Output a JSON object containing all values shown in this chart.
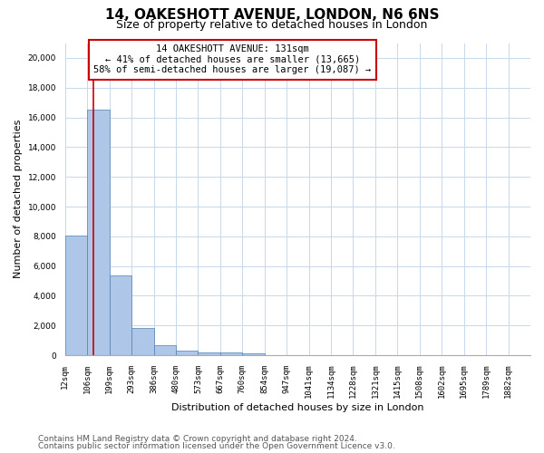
{
  "title_line1": "14, OAKESHOTT AVENUE, LONDON, N6 6NS",
  "title_line2": "Size of property relative to detached houses in London",
  "xlabel": "Distribution of detached houses by size in London",
  "ylabel": "Number of detached properties",
  "bar_color": "#aec6e8",
  "bar_edge_color": "#5080b0",
  "annotation_line_color": "#cc0000",
  "annotation_box_edge_color": "#cc0000",
  "annotation_text_line1": "14 OAKESHOTT AVENUE: 131sqm",
  "annotation_text_line2": "← 41% of detached houses are smaller (13,665)",
  "annotation_text_line3": "58% of semi-detached houses are larger (19,087) →",
  "bin_labels": [
    "12sqm",
    "106sqm",
    "199sqm",
    "293sqm",
    "386sqm",
    "480sqm",
    "573sqm",
    "667sqm",
    "760sqm",
    "854sqm",
    "947sqm",
    "1041sqm",
    "1134sqm",
    "1228sqm",
    "1321sqm",
    "1415sqm",
    "1508sqm",
    "1602sqm",
    "1695sqm",
    "1789sqm",
    "1882sqm"
  ],
  "bar_heights": [
    8050,
    16550,
    5350,
    1850,
    680,
    320,
    210,
    170,
    130,
    0,
    0,
    0,
    0,
    0,
    0,
    0,
    0,
    0,
    0,
    0,
    0
  ],
  "property_bar_index": 1,
  "ylim": [
    0,
    21000
  ],
  "yticks": [
    0,
    2000,
    4000,
    6000,
    8000,
    10000,
    12000,
    14000,
    16000,
    18000,
    20000
  ],
  "footer_line1": "Contains HM Land Registry data © Crown copyright and database right 2024.",
  "footer_line2": "Contains public sector information licensed under the Open Government Licence v3.0.",
  "bg_color": "#ffffff",
  "grid_color": "#c8d8ea",
  "title_fontsize": 11,
  "subtitle_fontsize": 9,
  "axis_label_fontsize": 8,
  "tick_fontsize": 6.5,
  "annotation_fontsize": 7.5,
  "footer_fontsize": 6.5
}
